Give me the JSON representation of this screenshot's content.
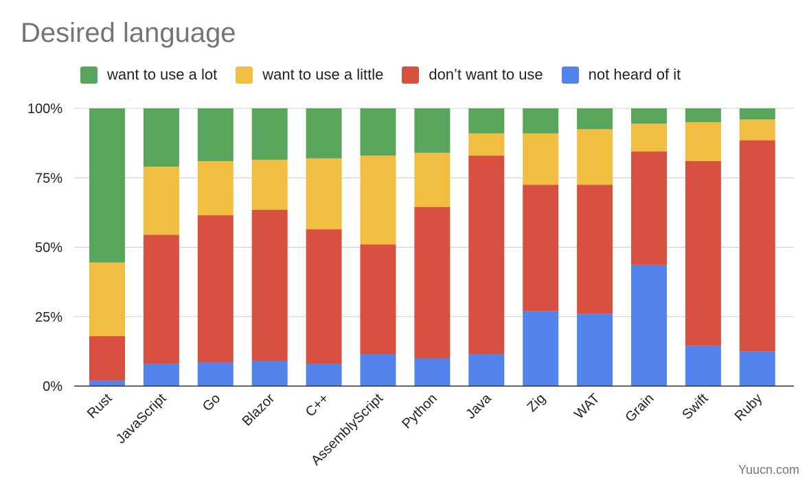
{
  "chart_data": {
    "type": "bar",
    "stacked": true,
    "title": "Desired language",
    "categories": [
      "Rust",
      "JavaScript",
      "Go",
      "Blazor",
      "C++",
      "AssemblyScript",
      "Python",
      "Java",
      "Zig",
      "WAT",
      "Grain",
      "Swift",
      "Ruby"
    ],
    "series": [
      {
        "name": "not heard of it",
        "color": "#5383ec",
        "values": [
          2,
          8,
          8.5,
          9,
          8,
          11.5,
          10,
          11.5,
          27,
          26,
          43.5,
          14.5,
          12.5
        ]
      },
      {
        "name": "don’t want to use",
        "color": "#d85140",
        "values": [
          16,
          46.5,
          53,
          54.5,
          48.5,
          39.5,
          54.5,
          71.5,
          45.5,
          46.5,
          41,
          66.5,
          76
        ]
      },
      {
        "name": "want to use a little",
        "color": "#f1be42",
        "values": [
          26.5,
          24.5,
          19.5,
          18,
          25.5,
          32,
          19.5,
          8,
          18.5,
          20,
          10,
          14,
          7.5
        ]
      },
      {
        "name": "want to use a lot",
        "color": "#58a65c",
        "values": [
          55.5,
          21,
          19,
          18.5,
          18,
          17,
          16,
          9,
          9,
          7.5,
          5.5,
          5,
          4
        ]
      }
    ],
    "legend_order": [
      "want to use a lot",
      "want to use a little",
      "don’t want to use",
      "not heard of it"
    ],
    "yticks": [
      "0%",
      "25%",
      "50%",
      "75%",
      "100%"
    ],
    "ylim": [
      0,
      100
    ],
    "grid": true,
    "legend_position": "top-left"
  },
  "watermark": "Yuucn.com"
}
